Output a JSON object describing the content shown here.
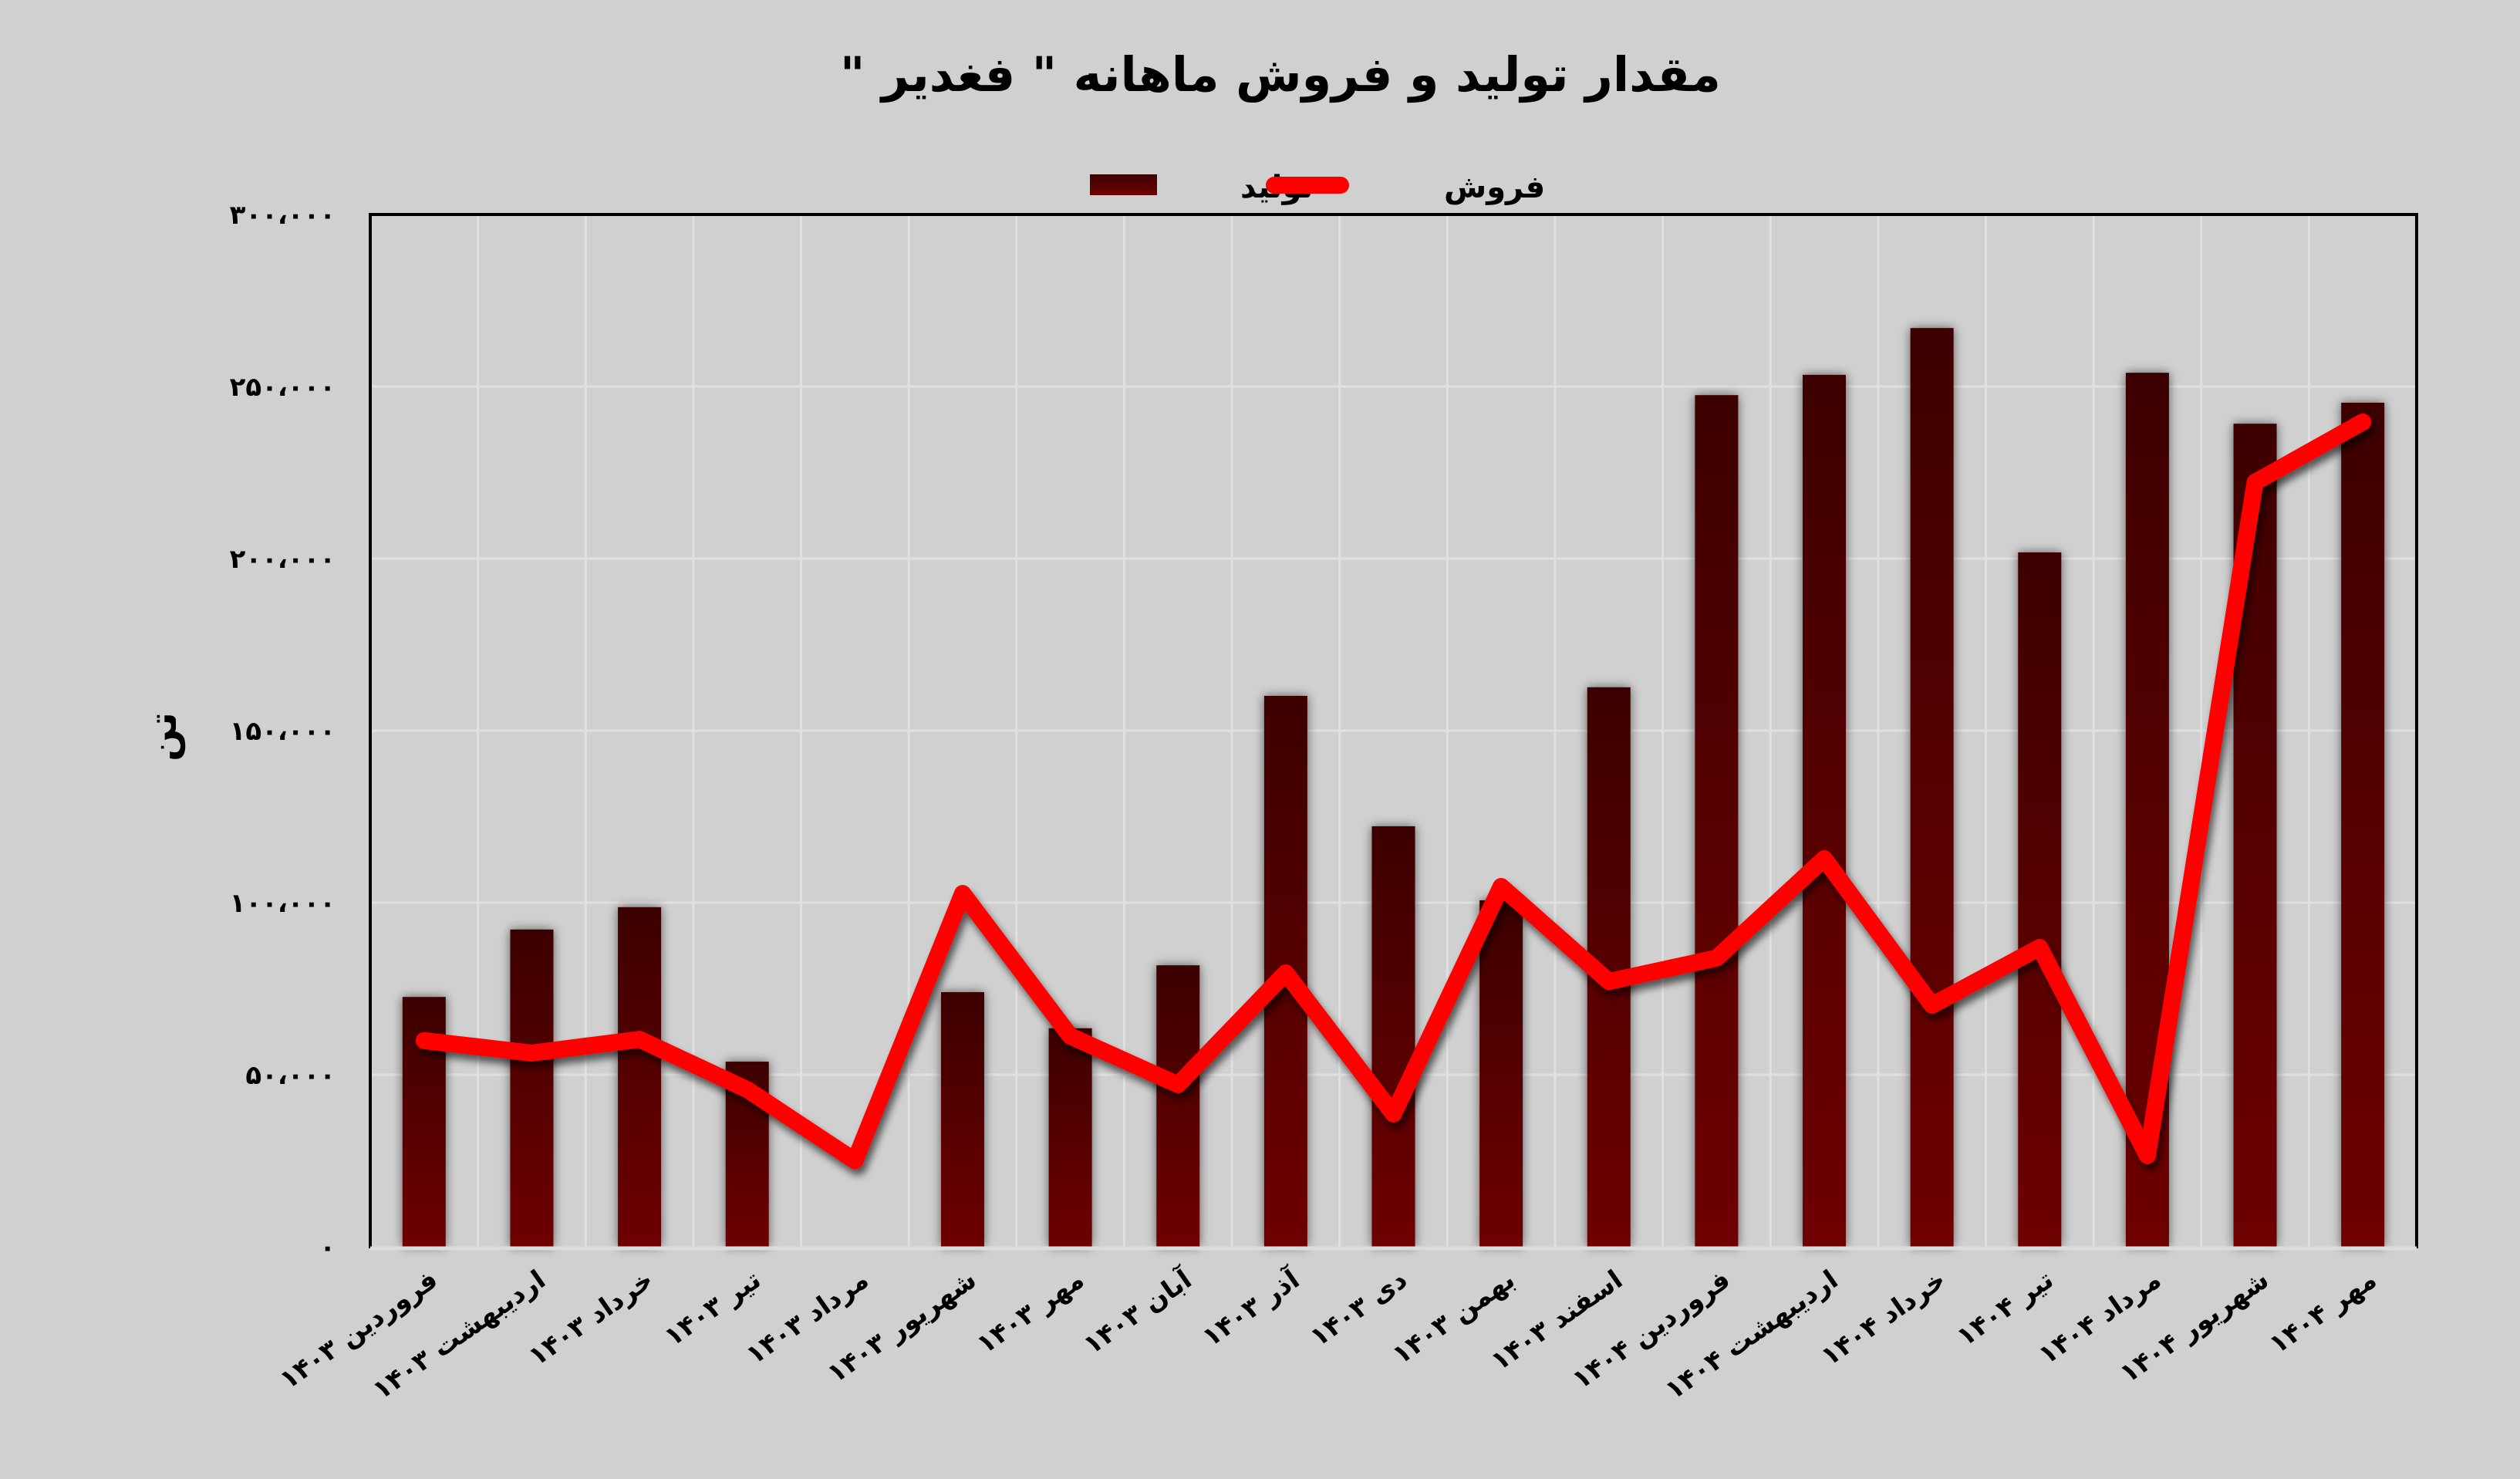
{
  "chart_data": {
    "type": "bar+line",
    "title": "مقدار تولید و فروش ماهانه \" فغدیر \"",
    "xlabel": "",
    "ylabel": "تن",
    "ylim": [
      0,
      300000
    ],
    "yticks": [
      0,
      50000,
      100000,
      150000,
      200000,
      250000,
      300000
    ],
    "ytick_labels": [
      "۰",
      "۵۰،۰۰۰",
      "۱۰۰،۰۰۰",
      "۱۵۰،۰۰۰",
      "۲۰۰،۰۰۰",
      "۲۵۰،۰۰۰",
      "۳۰۰،۰۰۰"
    ],
    "grid": true,
    "legend_position": "top",
    "categories": [
      "فروردین ۱۴۰۳",
      "اردیبهشت ۱۴۰۳",
      "خرداد ۱۴۰۳",
      "تیر ۱۴۰۳",
      "مرداد ۱۴۰۳",
      "شهریور ۱۴۰۳",
      "مهر ۱۴۰۳",
      "آبان ۱۴۰۳",
      "آذر ۱۴۰۳",
      "دی ۱۴۰۳",
      "بهمن ۱۴۰۳",
      "اسفند ۱۴۰۳",
      "فروردین ۱۴۰۴",
      "اردیبهشت ۱۴۰۴",
      "خرداد ۱۴۰۴",
      "تیر ۱۴۰۴",
      "مرداد ۱۴۰۴",
      "شهریور ۱۴۰۴",
      "مهر ۱۴۰۴"
    ],
    "series": [
      {
        "name": "تولید",
        "type": "bar",
        "color": "#6e0000",
        "color_top": "#3d0000",
        "values": [
          72600,
          92200,
          98700,
          53800,
          0,
          74000,
          63500,
          81800,
          160100,
          122200,
          100700,
          162600,
          247500,
          253400,
          267000,
          201800,
          254000,
          239200,
          245300
        ]
      },
      {
        "name": "فروش",
        "type": "line",
        "color": "#ff0000",
        "values": [
          59900,
          56300,
          60300,
          45700,
          25000,
          102700,
          61200,
          47100,
          79600,
          38600,
          104700,
          77100,
          83900,
          112800,
          70200,
          87000,
          26500,
          222200,
          239700
        ]
      }
    ]
  },
  "colors": {
    "background": "#d0d0d0",
    "gridline": "#e0e0e0",
    "axis": "#000000",
    "bar_bottom": "#6e0000",
    "bar_top": "#3d0000",
    "line": "#ff0000"
  },
  "legend": {
    "production_label": "تولید",
    "sales_label": "فروش"
  }
}
